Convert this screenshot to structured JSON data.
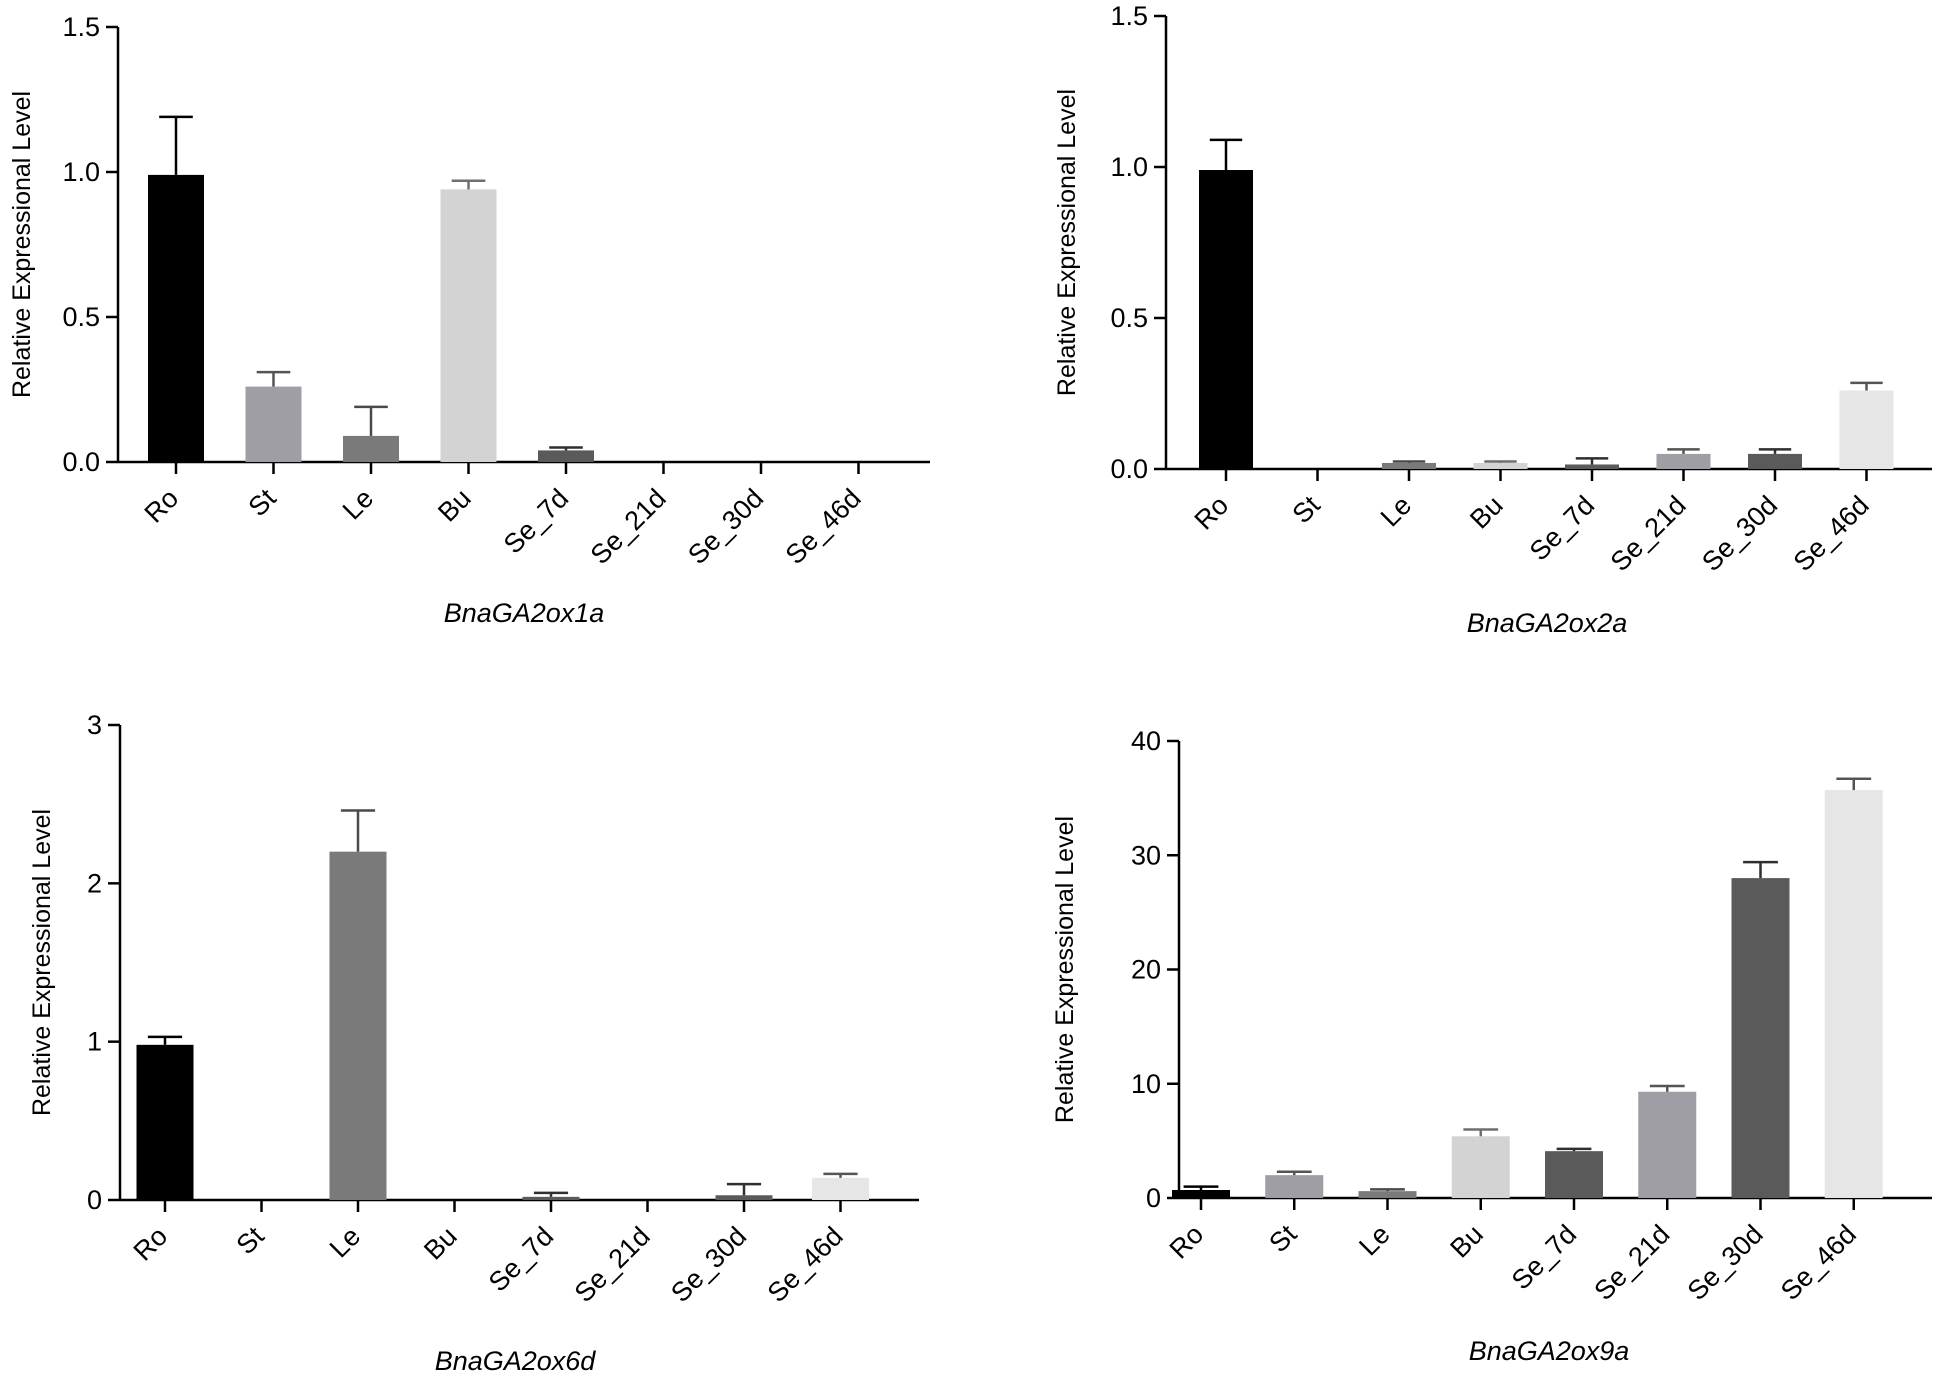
{
  "chart_data": [
    {
      "type": "bar",
      "title": "BnaGA2ox1a",
      "ylabel": "Relative Expressional Level",
      "categories": [
        "Ro",
        "St",
        "Le",
        "Bu",
        "Se_7d",
        "Se_21d",
        "Se_30d",
        "Se_46d"
      ],
      "values": [
        0.99,
        0.26,
        0.09,
        0.94,
        0.04,
        0,
        0,
        0
      ],
      "errors": [
        0.2,
        0.05,
        0.1,
        0.03,
        0.01,
        0,
        0,
        0
      ],
      "colors": [
        "#000000",
        "#9e9ea4",
        "#7a7a7a",
        "#d3d3d3",
        "#5a5a5a",
        "#9e9ea4",
        "#5a5a5a",
        "#e6e6e6"
      ],
      "yticks": [
        "0.0",
        "0.5",
        "1.0",
        "1.5"
      ],
      "ylim": [
        0,
        1.5
      ],
      "grid": false
    },
    {
      "type": "bar",
      "title": "BnaGA2ox2a",
      "ylabel": "Relative Expressional Level",
      "categories": [
        "Ro",
        "St",
        "Le",
        "Bu",
        "Se_7d",
        "Se_21d",
        "Se_30d",
        "Se_46d"
      ],
      "values": [
        0.99,
        0,
        0.02,
        0.02,
        0.015,
        0.05,
        0.05,
        0.26
      ],
      "errors": [
        0.1,
        0,
        0.005,
        0.005,
        0.02,
        0.015,
        0.015,
        0.025
      ],
      "colors": [
        "#000000",
        "#9e9ea4",
        "#7a7a7a",
        "#d3d3d3",
        "#5a5a5a",
        "#9e9ea4",
        "#5a5a5a",
        "#e6e6e6"
      ],
      "yticks": [
        "0.0",
        "0.5",
        "1.0",
        "1.5"
      ],
      "ylim": [
        0,
        1.5
      ],
      "grid": false
    },
    {
      "type": "bar",
      "title": "BnaGA2ox6d",
      "ylabel": "Relative Expressional Level",
      "categories": [
        "Ro",
        "St",
        "Le",
        "Bu",
        "Se_7d",
        "Se_21d",
        "Se_30d",
        "Se_46d"
      ],
      "values": [
        0.98,
        0,
        2.2,
        0,
        0.02,
        0,
        0.03,
        0.14
      ],
      "errors": [
        0.05,
        0,
        0.26,
        0,
        0.025,
        0,
        0.07,
        0.025
      ],
      "colors": [
        "#000000",
        "#9e9ea4",
        "#7a7a7a",
        "#d3d3d3",
        "#5a5a5a",
        "#9e9ea4",
        "#5a5a5a",
        "#e6e6e6"
      ],
      "yticks": [
        "0",
        "1",
        "2",
        "3"
      ],
      "ylim": [
        0,
        3
      ],
      "grid": false
    },
    {
      "type": "bar",
      "title": "BnaGA2ox9a",
      "ylabel": "Relative Expressional Level",
      "categories": [
        "Ro",
        "St",
        "Le",
        "Bu",
        "Se_7d",
        "Se_21d",
        "Se_30d",
        "Se_46d"
      ],
      "values": [
        0.7,
        2.0,
        0.6,
        5.4,
        4.1,
        9.3,
        28.0,
        35.7
      ],
      "errors": [
        0.3,
        0.3,
        0.15,
        0.6,
        0.2,
        0.5,
        1.4,
        1.0
      ],
      "colors": [
        "#000000",
        "#9e9ea4",
        "#7a7a7a",
        "#d3d3d3",
        "#5a5a5a",
        "#9e9ea4",
        "#5a5a5a",
        "#e6e6e6"
      ],
      "yticks": [
        "0",
        "10",
        "20",
        "30",
        "40"
      ],
      "ylim": [
        0,
        40
      ],
      "grid": false
    }
  ]
}
